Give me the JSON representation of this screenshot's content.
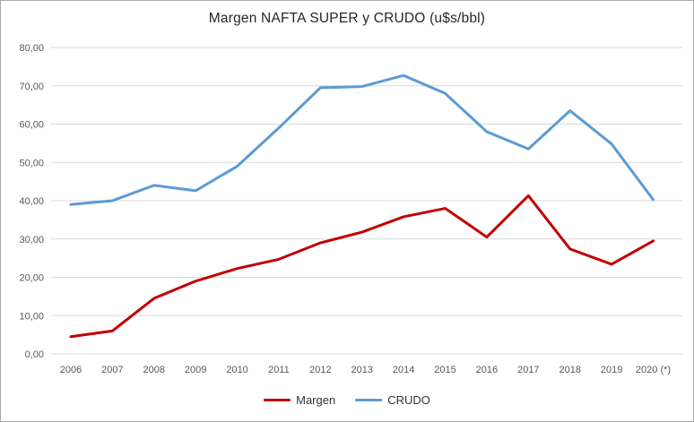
{
  "chart_data": {
    "type": "line",
    "title": "Margen NAFTA SUPER y CRUDO (u$s/bbl)",
    "categories": [
      "2006",
      "2007",
      "2008",
      "2009",
      "2010",
      "2011",
      "2012",
      "2013",
      "2014",
      "2015",
      "2016",
      "2017",
      "2018",
      "2019",
      "2020 (*)"
    ],
    "series": [
      {
        "name": "Margen",
        "color": "#C00000",
        "values": [
          4.5,
          6.0,
          14.5,
          19.0,
          22.3,
          24.7,
          29.0,
          31.8,
          35.8,
          38.0,
          30.5,
          41.3,
          27.4,
          23.4,
          29.5
        ]
      },
      {
        "name": "CRUDO",
        "color": "#5B9BD5",
        "values": [
          39.0,
          40.0,
          44.0,
          42.6,
          49.0,
          59.0,
          69.5,
          69.8,
          72.7,
          68.0,
          58.0,
          53.5,
          63.5,
          54.8,
          40.3
        ]
      }
    ],
    "ylim": [
      0,
      80
    ],
    "ytick_step": 10,
    "ytick_labels": [
      "0,00",
      "10,00",
      "20,00",
      "30,00",
      "40,00",
      "50,00",
      "60,00",
      "70,00",
      "80,00"
    ],
    "xlabel": "",
    "ylabel": "",
    "grid": "horizontal",
    "legend_position": "bottom",
    "gridline_color": "#d9d9d9",
    "axis_text_color": "#595959",
    "line_width": 3
  }
}
